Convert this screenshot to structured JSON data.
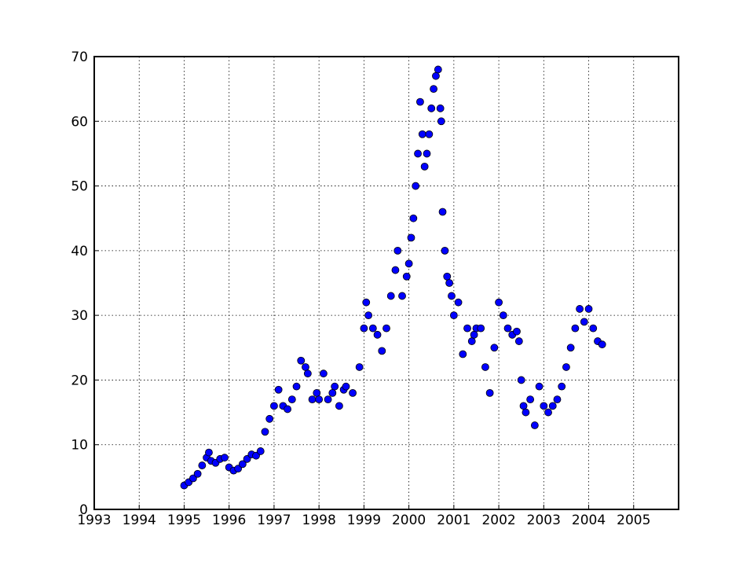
{
  "chart_data": {
    "type": "scatter",
    "x": [
      1995.0,
      1995.1,
      1995.2,
      1995.3,
      1995.4,
      1995.5,
      1995.55,
      1995.6,
      1995.7,
      1995.8,
      1995.9,
      1996.0,
      1996.1,
      1996.2,
      1996.3,
      1996.4,
      1996.5,
      1996.6,
      1996.7,
      1996.8,
      1996.9,
      1997.0,
      1997.1,
      1997.2,
      1997.3,
      1997.4,
      1997.5,
      1997.6,
      1997.7,
      1997.75,
      1997.85,
      1997.95,
      1998.0,
      1998.1,
      1998.2,
      1998.3,
      1998.35,
      1998.45,
      1998.55,
      1998.6,
      1998.75,
      1998.9,
      1999.0,
      1999.05,
      1999.1,
      1999.2,
      1999.3,
      1999.4,
      1999.5,
      1999.6,
      1999.7,
      1999.75,
      1999.85,
      1999.95,
      2000.0,
      2000.05,
      2000.1,
      2000.15,
      2000.2,
      2000.25,
      2000.3,
      2000.35,
      2000.4,
      2000.45,
      2000.5,
      2000.55,
      2000.6,
      2000.65,
      2000.7,
      2000.72,
      2000.75,
      2000.8,
      2000.85,
      2000.9,
      2000.95,
      2001.0,
      2001.1,
      2001.2,
      2001.3,
      2001.4,
      2001.45,
      2001.5,
      2001.6,
      2001.7,
      2001.8,
      2001.9,
      2002.0,
      2002.1,
      2002.2,
      2002.3,
      2002.4,
      2002.45,
      2002.5,
      2002.55,
      2002.6,
      2002.7,
      2002.8,
      2002.9,
      2003.0,
      2003.1,
      2003.2,
      2003.3,
      2003.4,
      2003.5,
      2003.6,
      2003.7,
      2003.8,
      2003.9,
      2004.0,
      2004.1,
      2004.2,
      2004.3
    ],
    "series": [
      {
        "color": "#0000ff",
        "values": [
          3.7,
          4.2,
          4.8,
          5.5,
          6.8,
          8.0,
          8.8,
          7.5,
          7.2,
          7.8,
          8.0,
          6.5,
          6.0,
          6.3,
          7.0,
          7.8,
          8.5,
          8.3,
          9.0,
          12.0,
          14.0,
          16.0,
          18.5,
          16.0,
          15.5,
          17.0,
          19.0,
          23.0,
          22.0,
          21.0,
          17.0,
          18.0,
          17.0,
          21.0,
          17.0,
          18.0,
          19.0,
          16.0,
          18.5,
          19.0,
          18.0,
          22.0,
          28.0,
          32.0,
          30.0,
          28.0,
          27.0,
          24.5,
          28.0,
          33.0,
          37.0,
          40.0,
          33.0,
          36.0,
          38.0,
          42.0,
          45.0,
          50.0,
          55.0,
          63.0,
          58.0,
          53.0,
          55.0,
          58.0,
          62.0,
          65.0,
          67.0,
          68.0,
          62.0,
          60.0,
          46.0,
          40.0,
          36.0,
          35.0,
          33.0,
          30.0,
          32.0,
          24.0,
          28.0,
          26.0,
          27.0,
          28.0,
          28.0,
          22.0,
          18.0,
          25.0,
          32.0,
          30.0,
          28.0,
          27.0,
          27.5,
          26.0,
          20.0,
          16.0,
          15.0,
          17.0,
          13.0,
          19.0,
          16.0,
          15.0,
          16.0,
          17.0,
          19.0,
          22.0,
          25.0,
          28.0,
          31.0,
          29.0,
          31.0,
          28.0,
          26.0,
          25.5
        ]
      }
    ],
    "xlim": [
      1993,
      2006
    ],
    "xticks": [
      1993,
      1994,
      1995,
      1996,
      1997,
      1998,
      1999,
      2000,
      2001,
      2002,
      2003,
      2004,
      2005
    ],
    "ylim": [
      0,
      70
    ],
    "yticks": [
      0,
      10,
      20,
      30,
      40,
      50,
      60,
      70
    ],
    "grid": true
  }
}
